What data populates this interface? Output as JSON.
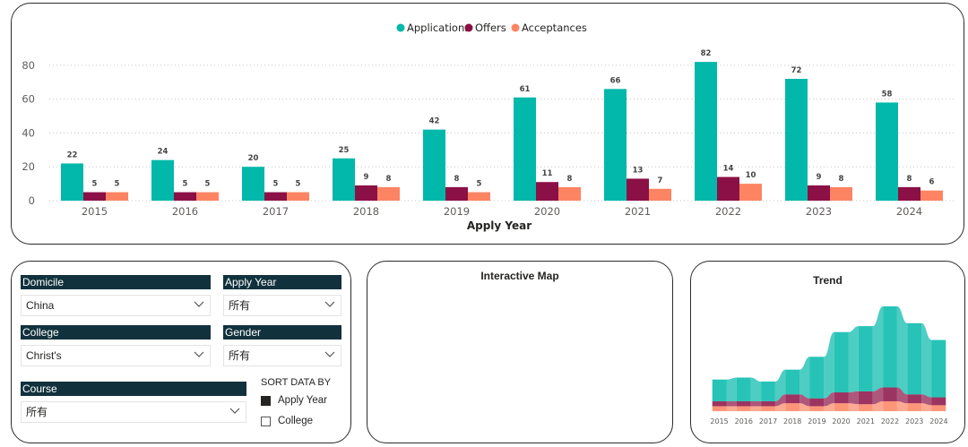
{
  "colors": {
    "applications": "#01b8aa",
    "offers": "#8b1045",
    "acceptances": "#fd8462",
    "header_bg": "#11323d"
  },
  "chart_data": {
    "type": "bar",
    "title": "",
    "xlabel": "Apply Year",
    "ylabel": "",
    "ylim": [
      0,
      90
    ],
    "yticks": [
      0,
      20,
      40,
      60,
      80
    ],
    "categories": [
      "2015",
      "2016",
      "2017",
      "2018",
      "2019",
      "2020",
      "2021",
      "2022",
      "2023",
      "2024"
    ],
    "series": [
      {
        "name": "Applications",
        "values": [
          22,
          24,
          20,
          25,
          42,
          61,
          66,
          82,
          72,
          58
        ]
      },
      {
        "name": "Offers",
        "values": [
          5,
          5,
          5,
          9,
          8,
          11,
          13,
          14,
          9,
          8
        ]
      },
      {
        "name": "Acceptances",
        "values": [
          5,
          5,
          5,
          8,
          5,
          8,
          7,
          10,
          8,
          6
        ]
      }
    ],
    "legend_position": "top-center"
  },
  "filters": {
    "domicile": {
      "label": "Domicile",
      "value": "China"
    },
    "apply_year": {
      "label": "Apply Year",
      "value": "所有"
    },
    "college": {
      "label": "College",
      "value": "Christ's"
    },
    "gender": {
      "label": "Gender",
      "value": "所有"
    },
    "course": {
      "label": "Course",
      "value": "所有"
    }
  },
  "sort": {
    "title": "SORT DATA BY",
    "options": [
      {
        "label": "Apply Year",
        "selected": true
      },
      {
        "label": "College",
        "selected": false
      }
    ]
  },
  "map": {
    "title": "Interactive Map"
  },
  "trend": {
    "title": "Trend",
    "categories": [
      "2015",
      "2016",
      "2017",
      "2018",
      "2019",
      "2020",
      "2021",
      "2022",
      "2023",
      "2024"
    ]
  }
}
